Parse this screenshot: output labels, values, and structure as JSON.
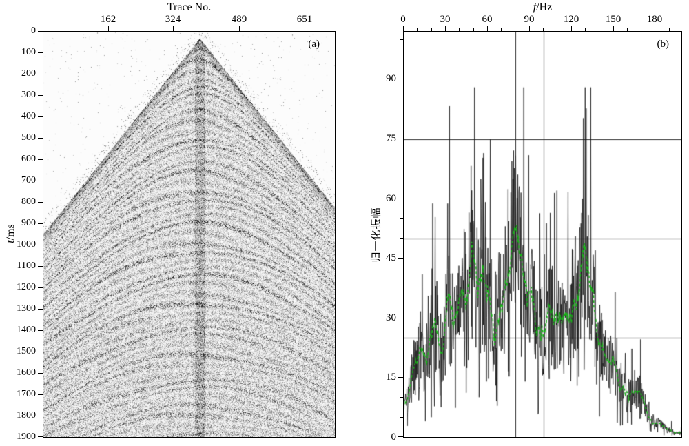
{
  "chart_data": [
    {
      "panel_label": "(a)",
      "type": "heatmap",
      "title": "",
      "xlabel": "Trace No.",
      "ylabel_prefix": "t",
      "ylabel_suffix": "/ms",
      "xlim": [
        0,
        728
      ],
      "ylim": [
        0,
        1900
      ],
      "x_ticks": [
        162,
        324,
        489,
        651
      ],
      "y_ticks": [
        0,
        100,
        200,
        300,
        400,
        500,
        600,
        700,
        800,
        900,
        1000,
        1100,
        1200,
        1300,
        1400,
        1500,
        1600,
        1700,
        1800,
        1900
      ],
      "description": "Grayscale seismic shot gather: triangular cone of first arrivals with apex near trace 390 at about 30 ms; hyperbolic reflection events and speckle noise below the first-arrival cone; white above the cone; dense noisy vertical band at the central trace.",
      "render": {
        "seed": 20240613,
        "apex_trace": 390,
        "apex_time_ms": 30,
        "slope_ms_per_trace": 2.35
      }
    },
    {
      "panel_label": "(b)",
      "type": "line",
      "title": "",
      "xlabel_prefix": "f",
      "xlabel_suffix": "/Hz",
      "ylabel": "归一化振幅",
      "xlim": [
        0,
        199
      ],
      "ylim": [
        0,
        102
      ],
      "x_ticks": [
        0,
        30,
        60,
        90,
        120,
        150,
        180
      ],
      "x_minor_step": 10,
      "y_ticks": [
        0,
        15,
        30,
        45,
        60,
        75,
        90
      ],
      "y_minor_step": 5,
      "hlines": [
        25,
        50,
        75
      ],
      "vlines": [
        80,
        100
      ],
      "series": [
        {
          "name": "amplitude-spectrum",
          "color": "#141414",
          "style": "noisy solid"
        },
        {
          "name": "smoothed-spectrum",
          "color": "#17b317",
          "dash": [
            4,
            3
          ],
          "style": "dashed"
        }
      ],
      "envelope": {
        "f": [
          0,
          4,
          8,
          12,
          16,
          20,
          24,
          28,
          32,
          36,
          40,
          44,
          48,
          52,
          56,
          60,
          64,
          68,
          72,
          76,
          80,
          84,
          88,
          92,
          96,
          100,
          104,
          108,
          112,
          116,
          120,
          124,
          128,
          132,
          136,
          140,
          144,
          148,
          152,
          156,
          160,
          164,
          168,
          172,
          176,
          180,
          184,
          188,
          192,
          196,
          199
        ],
        "amp": [
          6,
          12,
          18,
          22,
          20,
          25,
          28,
          24,
          33,
          28,
          30,
          38,
          44,
          40,
          34,
          35,
          30,
          32,
          36,
          50,
          52,
          44,
          38,
          33,
          30,
          28,
          31,
          29,
          27,
          28,
          32,
          36,
          42,
          40,
          34,
          24,
          20,
          18,
          15,
          13,
          11,
          10,
          12,
          8,
          6,
          4,
          3,
          2,
          1.5,
          1,
          1
        ]
      },
      "noise": {
        "seed": 987654,
        "jitter": 0.45,
        "spike_prob": 0.05,
        "spike_scale": 0.95
      }
    }
  ]
}
